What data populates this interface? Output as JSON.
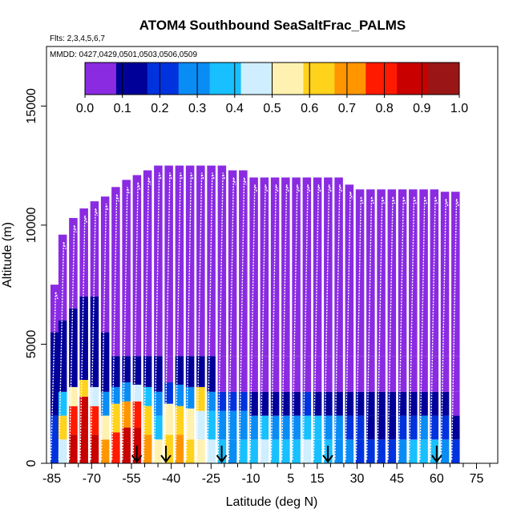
{
  "chart_data": {
    "type": "heatmap",
    "title": "ATOM4 Southbound SeaSaltFrac_PALMS",
    "flights_label": "Flts: 2,3,4,5,6,7",
    "dates_label": "MMDD: 0427,0429,0501,0503,0506,0509",
    "xlabel": "Latitude (deg N)",
    "ylabel": "Altitude (m)",
    "xlim": [
      -87,
      83
    ],
    "ylim": [
      0,
      17500
    ],
    "x_ticks": [
      -85,
      -70,
      -55,
      -40,
      -25,
      -10,
      5,
      15,
      30,
      45,
      60,
      75
    ],
    "x_minor_ticks": [
      -80,
      -75,
      -65,
      -60,
      -50,
      -45,
      -35,
      -30,
      -20,
      -15,
      -5,
      0,
      10,
      20,
      25,
      35,
      40,
      50,
      55,
      65,
      70,
      80
    ],
    "y_ticks": [
      0,
      5000,
      10000,
      15000
    ],
    "colorbar": {
      "range": [
        0.0,
        1.0
      ],
      "tick_labels": [
        "0.0",
        "0.1",
        "0.2",
        "0.3",
        "0.4",
        "0.5",
        "0.6",
        "0.7",
        "0.8",
        "0.9",
        "1.0"
      ],
      "colors": [
        "#8a2be2",
        "#000099",
        "#0033dd",
        "#0a8cf5",
        "#18c0ff",
        "#cfeeff",
        "#fff2b0",
        "#ffd21c",
        "#ff9600",
        "#ff1a00",
        "#c80000",
        "#9a1616"
      ]
    },
    "arrows_lat": [
      -53,
      -42,
      -21,
      19,
      60
    ],
    "columns": [
      {
        "lat": -84,
        "top": 7500,
        "levels": [
          [
            0,
            0.15
          ],
          [
            2000,
            0.12
          ],
          [
            3500,
            0.05
          ],
          [
            5500,
            0.0
          ]
        ]
      },
      {
        "lat": -81,
        "top": 9600,
        "levels": [
          [
            0,
            0.45
          ],
          [
            1000,
            0.6
          ],
          [
            2000,
            0.35
          ],
          [
            3000,
            0.1
          ],
          [
            6000,
            0.0
          ]
        ]
      },
      {
        "lat": -77,
        "top": 10300,
        "levels": [
          [
            0,
            0.95
          ],
          [
            1200,
            0.85
          ],
          [
            2400,
            0.5
          ],
          [
            3200,
            0.08
          ],
          [
            6500,
            0.0
          ]
        ]
      },
      {
        "lat": -73,
        "top": 10700,
        "levels": [
          [
            0,
            0.95
          ],
          [
            1500,
            0.9
          ],
          [
            2800,
            0.6
          ],
          [
            3500,
            0.12
          ],
          [
            7000,
            0.0
          ]
        ]
      },
      {
        "lat": -69,
        "top": 11000,
        "levels": [
          [
            0,
            0.9
          ],
          [
            1200,
            0.85
          ],
          [
            2400,
            0.45
          ],
          [
            3200,
            0.1
          ],
          [
            7000,
            0.0
          ]
        ]
      },
      {
        "lat": -65,
        "top": 11200,
        "levels": [
          [
            0,
            0.7
          ],
          [
            1000,
            0.5
          ],
          [
            2000,
            0.3
          ],
          [
            3000,
            0.08
          ],
          [
            5500,
            0.0
          ]
        ]
      },
      {
        "lat": -61,
        "top": 11600,
        "levels": [
          [
            0,
            0.85
          ],
          [
            1300,
            0.65
          ],
          [
            2500,
            0.25
          ],
          [
            3200,
            0.05
          ],
          [
            4500,
            0.0
          ]
        ]
      },
      {
        "lat": -57,
        "top": 11900,
        "levels": [
          [
            0,
            0.9
          ],
          [
            1500,
            0.7
          ],
          [
            2600,
            0.3
          ],
          [
            3400,
            0.05
          ],
          [
            4500,
            0.0
          ]
        ]
      },
      {
        "lat": -53,
        "top": 12100,
        "levels": [
          [
            0,
            0.95
          ],
          [
            1500,
            0.8
          ],
          [
            2600,
            0.45
          ],
          [
            3300,
            0.08
          ],
          [
            4500,
            0.0
          ]
        ]
      },
      {
        "lat": -49,
        "top": 12300,
        "levels": [
          [
            0,
            0.75
          ],
          [
            1200,
            0.6
          ],
          [
            2400,
            0.35
          ],
          [
            3200,
            0.06
          ],
          [
            4500,
            0.0
          ]
        ]
      },
      {
        "lat": -45,
        "top": 12500,
        "levels": [
          [
            0,
            0.55
          ],
          [
            1000,
            0.4
          ],
          [
            2000,
            0.25
          ],
          [
            3000,
            0.05
          ],
          [
            4500,
            0.0
          ]
        ]
      },
      {
        "lat": -41,
        "top": 12500,
        "levels": [
          [
            0,
            0.6
          ],
          [
            1200,
            0.5
          ],
          [
            2500,
            0.2
          ],
          [
            3400,
            0.04
          ],
          [
            4500,
            0.0
          ]
        ]
      },
      {
        "lat": -37,
        "top": 12500,
        "levels": [
          [
            0,
            0.75
          ],
          [
            1200,
            0.6
          ],
          [
            2400,
            0.3
          ],
          [
            3300,
            0.05
          ],
          [
            4500,
            0.0
          ]
        ]
      },
      {
        "lat": -33,
        "top": 12500,
        "levels": [
          [
            0,
            0.65
          ],
          [
            1000,
            0.55
          ],
          [
            2300,
            0.3
          ],
          [
            3200,
            0.05
          ],
          [
            4500,
            0.0
          ]
        ]
      },
      {
        "lat": -29,
        "top": 12500,
        "levels": [
          [
            0,
            0.5
          ],
          [
            1000,
            0.45
          ],
          [
            2200,
            0.6
          ],
          [
            3200,
            0.06
          ],
          [
            4500,
            0.0
          ]
        ]
      },
      {
        "lat": -25,
        "top": 12500,
        "levels": [
          [
            0,
            0.45
          ],
          [
            1000,
            0.35
          ],
          [
            2200,
            0.25
          ],
          [
            3000,
            0.05
          ],
          [
            4500,
            0.0
          ]
        ]
      },
      {
        "lat": -21,
        "top": 12500,
        "levels": [
          [
            0,
            0.35
          ],
          [
            1000,
            0.3
          ],
          [
            2200,
            0.2
          ],
          [
            3000,
            0.04
          ],
          [
            4500,
            0.0
          ]
        ]
      },
      {
        "lat": -17,
        "top": 12300,
        "levels": [
          [
            0,
            0.3
          ],
          [
            1000,
            0.25
          ],
          [
            2200,
            0.15
          ],
          [
            3000,
            0.04
          ],
          [
            4500,
            0.0
          ]
        ]
      },
      {
        "lat": -13,
        "top": 12300,
        "levels": [
          [
            0,
            0.35
          ],
          [
            1000,
            0.3
          ],
          [
            2200,
            0.2
          ],
          [
            3000,
            0.04
          ],
          [
            4500,
            0.0
          ]
        ]
      },
      {
        "lat": -9,
        "top": 12000,
        "levels": [
          [
            0,
            0.4
          ],
          [
            1000,
            0.3
          ],
          [
            2000,
            0.12
          ],
          [
            3000,
            0.03
          ],
          [
            4500,
            0.0
          ]
        ]
      },
      {
        "lat": -5,
        "top": 12000,
        "levels": [
          [
            0,
            0.45
          ],
          [
            1000,
            0.35
          ],
          [
            2000,
            0.12
          ],
          [
            3000,
            0.03
          ],
          [
            4500,
            0.0
          ]
        ]
      },
      {
        "lat": -1,
        "top": 12000,
        "levels": [
          [
            0,
            0.4
          ],
          [
            1000,
            0.3
          ],
          [
            2000,
            0.1
          ],
          [
            3000,
            0.03
          ],
          [
            4500,
            0.0
          ]
        ]
      },
      {
        "lat": 3,
        "top": 12000,
        "levels": [
          [
            0,
            0.35
          ],
          [
            1000,
            0.25
          ],
          [
            2000,
            0.1
          ],
          [
            3000,
            0.03
          ],
          [
            4500,
            0.0
          ]
        ]
      },
      {
        "lat": 7,
        "top": 12000,
        "levels": [
          [
            0,
            0.4
          ],
          [
            1000,
            0.3
          ],
          [
            2000,
            0.12
          ],
          [
            3000,
            0.03
          ],
          [
            4500,
            0.0
          ]
        ]
      },
      {
        "lat": 11,
        "top": 12000,
        "levels": [
          [
            0,
            0.45
          ],
          [
            1000,
            0.35
          ],
          [
            2000,
            0.15
          ],
          [
            3000,
            0.03
          ],
          [
            4500,
            0.0
          ]
        ]
      },
      {
        "lat": 15,
        "top": 12000,
        "levels": [
          [
            0,
            0.4
          ],
          [
            1000,
            0.32
          ],
          [
            2000,
            0.12
          ],
          [
            3000,
            0.03
          ],
          [
            4500,
            0.0
          ]
        ]
      },
      {
        "lat": 19,
        "top": 12000,
        "levels": [
          [
            0,
            0.35
          ],
          [
            1000,
            0.28
          ],
          [
            2000,
            0.1
          ],
          [
            3000,
            0.02
          ],
          [
            4500,
            0.0
          ]
        ]
      },
      {
        "lat": 23,
        "top": 12000,
        "levels": [
          [
            0,
            0.3
          ],
          [
            1000,
            0.25
          ],
          [
            2000,
            0.1
          ],
          [
            3000,
            0.02
          ],
          [
            4500,
            0.0
          ]
        ]
      },
      {
        "lat": 27,
        "top": 11700,
        "levels": [
          [
            0,
            0.25
          ],
          [
            1000,
            0.2
          ],
          [
            2000,
            0.1
          ],
          [
            3000,
            0.02
          ],
          [
            4500,
            0.0
          ]
        ]
      },
      {
        "lat": 31,
        "top": 11500,
        "levels": [
          [
            0,
            0.2
          ],
          [
            1000,
            0.15
          ],
          [
            2000,
            0.08
          ],
          [
            3000,
            0.02
          ],
          [
            4500,
            0.0
          ]
        ]
      },
      {
        "lat": 35,
        "top": 11500,
        "levels": [
          [
            0,
            0.2
          ],
          [
            1000,
            0.12
          ],
          [
            2000,
            0.06
          ],
          [
            3000,
            0.02
          ],
          [
            4500,
            0.0
          ]
        ]
      },
      {
        "lat": 39,
        "top": 11500,
        "levels": [
          [
            0,
            0.18
          ],
          [
            1000,
            0.12
          ],
          [
            2000,
            0.05
          ],
          [
            3000,
            0.01
          ],
          [
            4500,
            0.0
          ]
        ]
      },
      {
        "lat": 43,
        "top": 11500,
        "levels": [
          [
            0,
            0.2
          ],
          [
            1000,
            0.12
          ],
          [
            2000,
            0.05
          ],
          [
            3000,
            0.01
          ],
          [
            4500,
            0.0
          ]
        ]
      },
      {
        "lat": 47,
        "top": 11500,
        "levels": [
          [
            0,
            0.3
          ],
          [
            1000,
            0.15
          ],
          [
            2000,
            0.05
          ],
          [
            3000,
            0.01
          ],
          [
            4500,
            0.0
          ]
        ]
      },
      {
        "lat": 51,
        "top": 11500,
        "levels": [
          [
            0,
            0.35
          ],
          [
            1000,
            0.2
          ],
          [
            2000,
            0.05
          ],
          [
            3000,
            0.01
          ],
          [
            4500,
            0.0
          ]
        ]
      },
      {
        "lat": 55,
        "top": 11500,
        "levels": [
          [
            0,
            0.4
          ],
          [
            1000,
            0.25
          ],
          [
            2000,
            0.06
          ],
          [
            3000,
            0.01
          ],
          [
            4500,
            0.0
          ]
        ]
      },
      {
        "lat": 59,
        "top": 11500,
        "levels": [
          [
            0,
            0.35
          ],
          [
            1000,
            0.2
          ],
          [
            2000,
            0.05
          ],
          [
            3000,
            0.01
          ],
          [
            4500,
            0.0
          ]
        ]
      },
      {
        "lat": 63,
        "top": 11400,
        "levels": [
          [
            0,
            0.3
          ],
          [
            1000,
            0.15
          ],
          [
            2000,
            0.05
          ],
          [
            3000,
            0.01
          ],
          [
            4500,
            0.0
          ]
        ]
      },
      {
        "lat": 67,
        "top": 11400,
        "levels": [
          [
            0,
            0.15
          ],
          [
            1000,
            0.1
          ],
          [
            2000,
            0.04
          ],
          [
            3000,
            0.01
          ],
          [
            4500,
            0.0
          ]
        ]
      }
    ]
  }
}
